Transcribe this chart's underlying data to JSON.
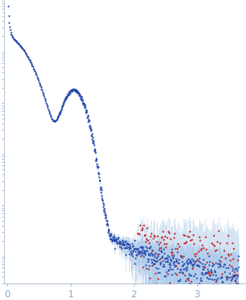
{
  "xlim": [
    -0.05,
    3.75
  ],
  "x_ticks": [
    0,
    1,
    2,
    3
  ],
  "bg_color": "#ffffff",
  "axis_color": "#aabbcc",
  "tick_color": "#88aacc",
  "dot_color_blue": "#2244aa",
  "dot_color_red": "#cc2222",
  "error_color": "#aac8e8",
  "log_I0": 5.2,
  "Rg": 4.8,
  "seed": 17
}
